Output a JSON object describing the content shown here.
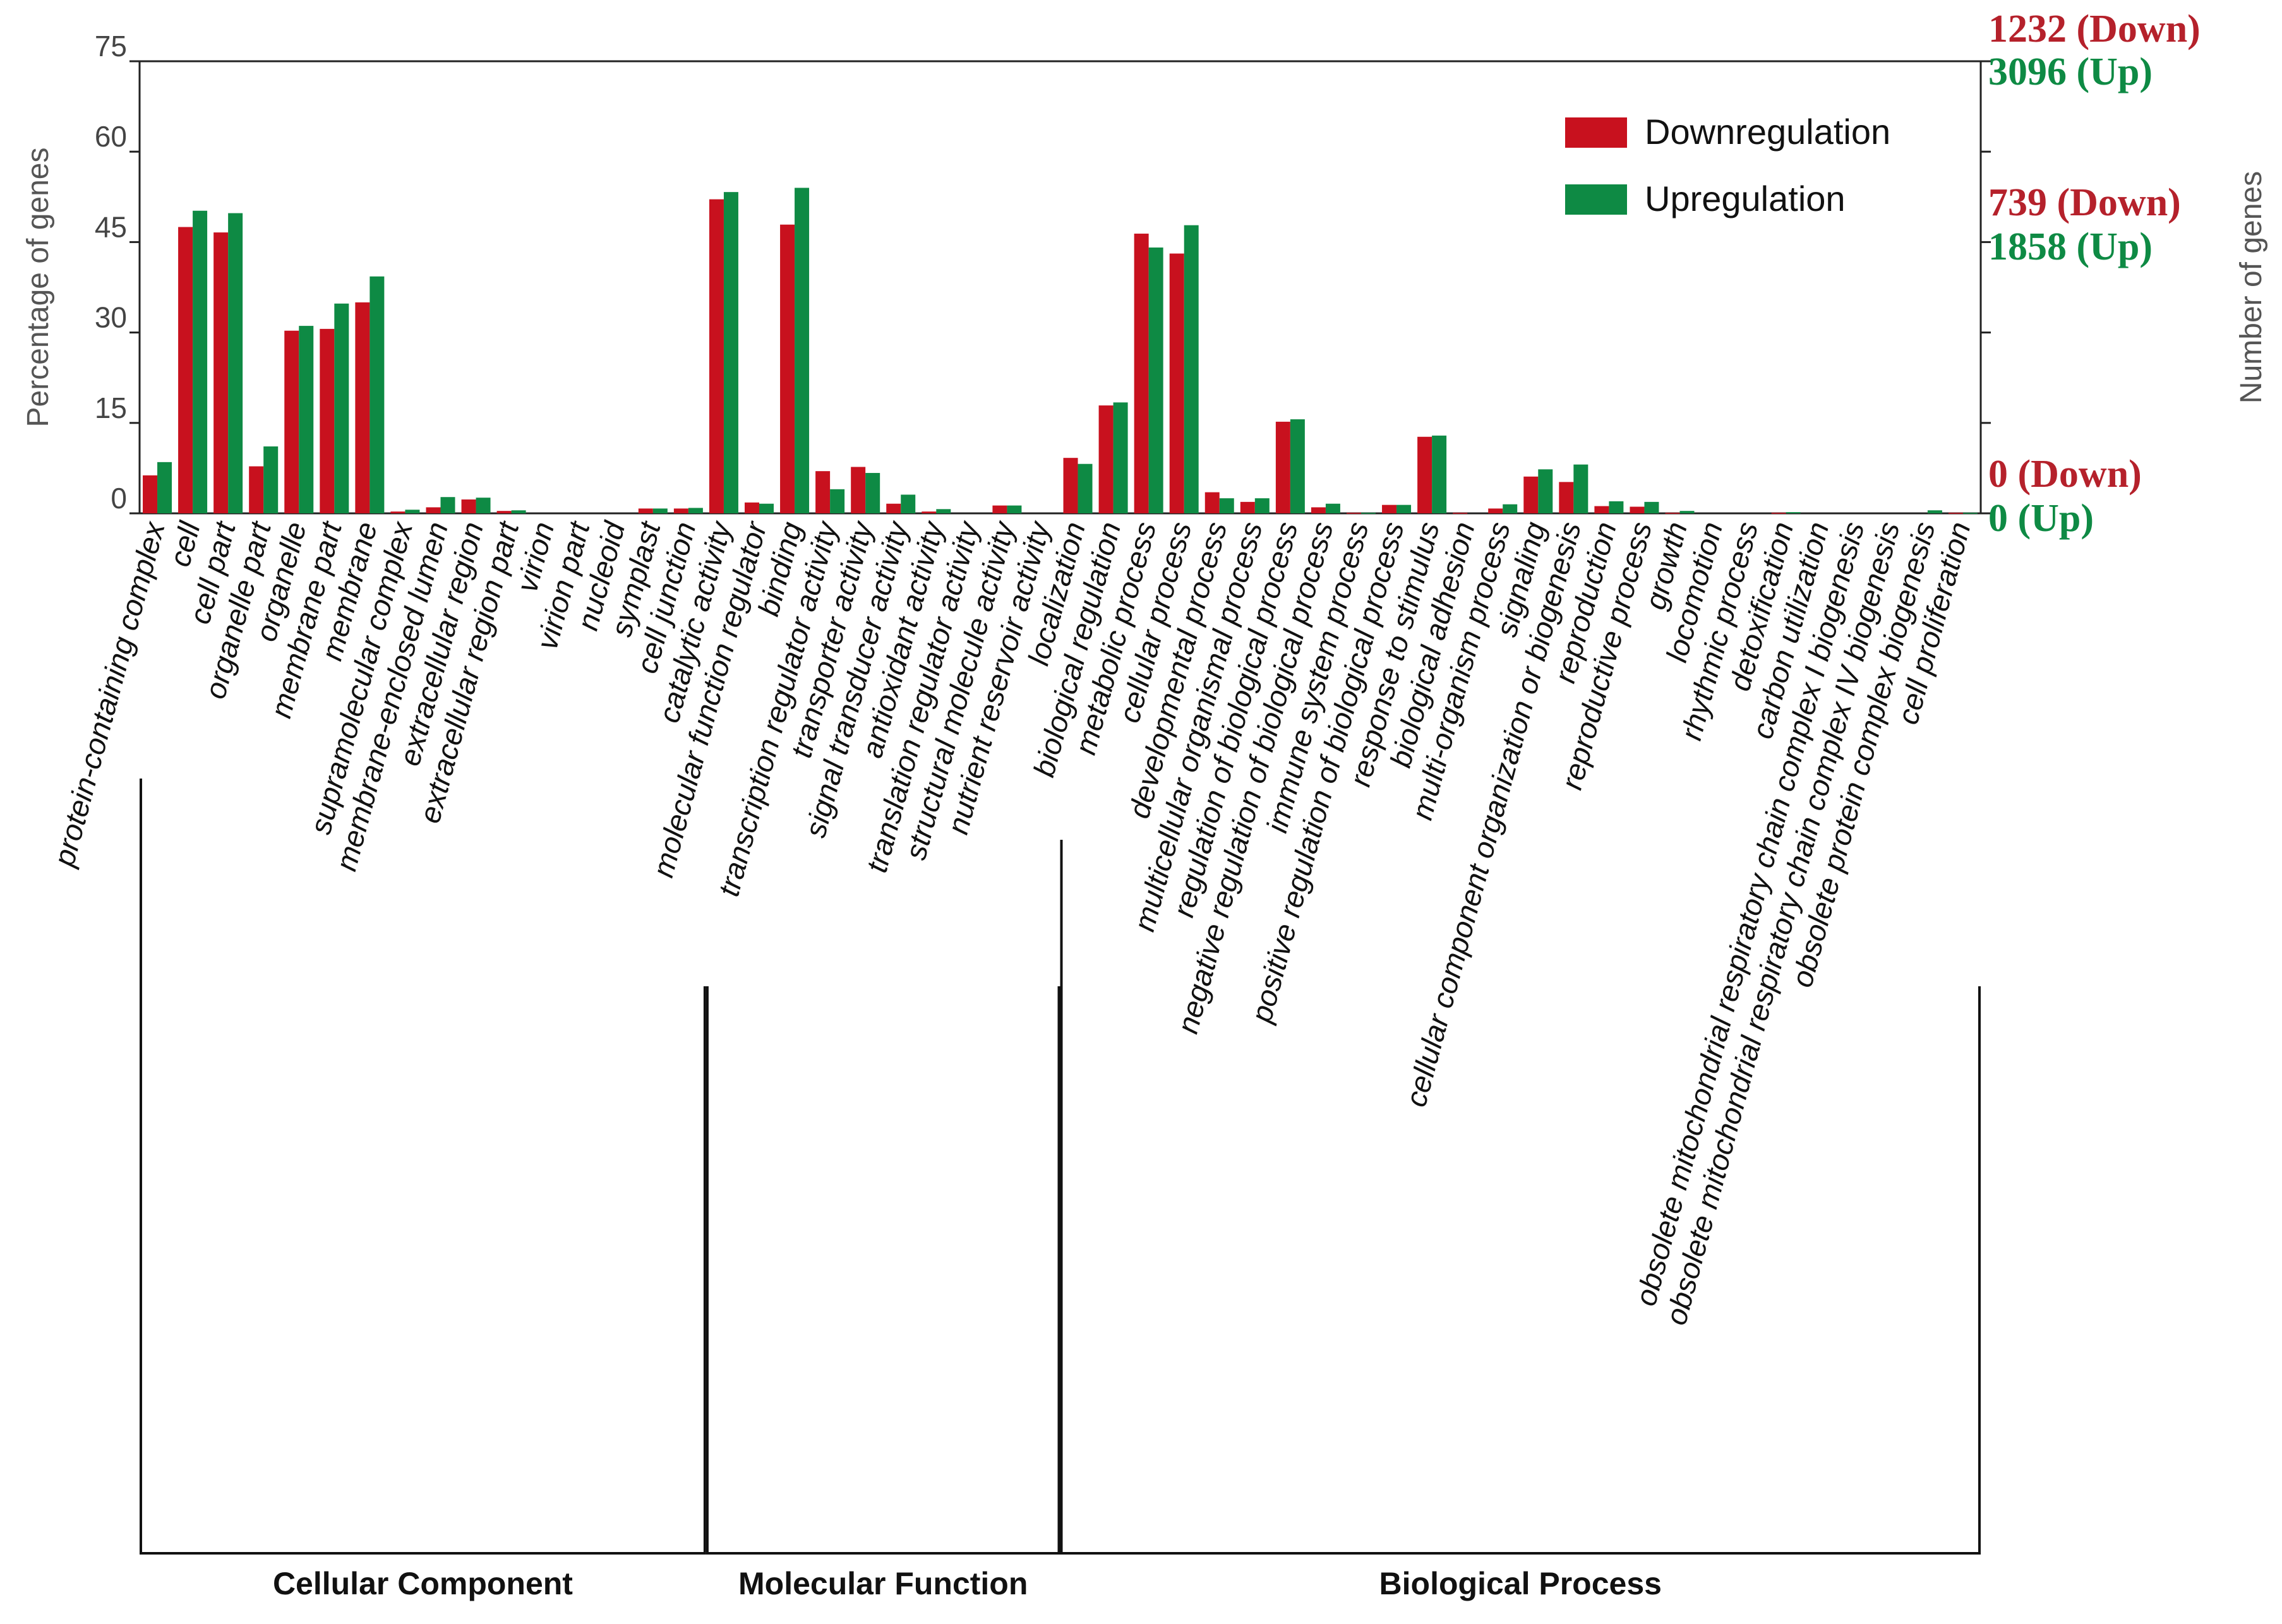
{
  "chart_data": {
    "type": "bar",
    "title": "",
    "ylabel": "Percentage of genes",
    "y2label": "Number of genes",
    "ylim": [
      0,
      75
    ],
    "yticks": [
      0,
      15,
      30,
      45,
      60,
      75
    ],
    "categories": [
      "protein-containing complex",
      "cell",
      "cell part",
      "organelle part",
      "organelle",
      "membrane part",
      "membrane",
      "supramolecular complex",
      "membrane-enclosed lumen",
      "extracellular region",
      "extracellular region part",
      "virion",
      "virion part",
      "nucleoid",
      "symplast",
      "cell junction",
      "catalytic activity",
      "molecular function regulator",
      "binding",
      "transcription regulator activity",
      "transporter activity",
      "signal transducer activity",
      "antioxidant activity",
      "translation regulator activity",
      "structural molecule activity",
      "nutrient reservoir activity",
      "localization",
      "biological regulation",
      "metabolic process",
      "cellular process",
      "developmental process",
      "multicellular organismal process",
      "regulation of biological process",
      "negative regulation of biological process",
      "immune system process",
      "positive regulation of biological process",
      "response to stimulus",
      "biological adhesion",
      "multi-organism process",
      "signaling",
      "cellular component organization or biogenesis",
      "reproduction",
      "reproductive process",
      "growth",
      "locomotion",
      "rhythmic process",
      "detoxification",
      "carbon utilization",
      "obsolete mitochondrial respiratory chain complex I biogenesis",
      "obsolete mitochondrial respiratory chain complex IV biogenesis",
      "obsolete protein complex biogenesis",
      "cell proliferation"
    ],
    "series": [
      {
        "name": "Downregulation",
        "color": "#c8111e",
        "values": [
          6.3,
          47.5,
          46.6,
          7.8,
          30.3,
          30.6,
          35.0,
          0.3,
          1.0,
          2.3,
          0.4,
          0,
          0,
          0,
          0.8,
          0.8,
          52.1,
          1.8,
          47.9,
          7.0,
          7.7,
          1.6,
          0.3,
          0,
          1.3,
          0,
          9.2,
          17.9,
          46.4,
          43.1,
          3.5,
          1.9,
          15.2,
          1.0,
          0.1,
          1.4,
          12.7,
          0.1,
          0.8,
          6.1,
          5.2,
          1.2,
          1.1,
          0.1,
          0,
          0,
          0.1,
          0,
          0,
          0,
          0,
          0.1
        ]
      },
      {
        "name": "Upregulation",
        "color": "#0e8a44",
        "values": [
          8.5,
          50.2,
          49.8,
          11.1,
          31.1,
          34.8,
          39.3,
          0.6,
          2.7,
          2.6,
          0.5,
          0,
          0,
          0,
          0.8,
          0.9,
          53.3,
          1.6,
          54.0,
          4.0,
          6.7,
          3.1,
          0.7,
          0,
          1.3,
          0,
          8.2,
          18.4,
          44.1,
          47.8,
          2.5,
          2.5,
          15.6,
          1.6,
          0.1,
          1.4,
          12.9,
          0,
          1.5,
          7.3,
          8.1,
          2.0,
          1.9,
          0.4,
          0,
          0,
          0.2,
          0,
          0,
          0,
          0.5,
          0.1
        ]
      }
    ],
    "legend": {
      "position": "top-right",
      "entries": [
        "Downregulation",
        "Upregulation"
      ]
    },
    "right_axis_labels": [
      {
        "down": "1232 (Down)",
        "up": "3096 (Up)"
      },
      {
        "down": "739 (Down)",
        "up": "1858 (Up)"
      },
      {
        "down": "0 (Down)",
        "up": "0 (Up)"
      }
    ],
    "groups": [
      {
        "name": "Cellular Component",
        "start": 0,
        "end": 15
      },
      {
        "name": "Molecular Function",
        "start": 16,
        "end": 25
      },
      {
        "name": "Biological Process",
        "start": 26,
        "end": 51
      }
    ]
  }
}
